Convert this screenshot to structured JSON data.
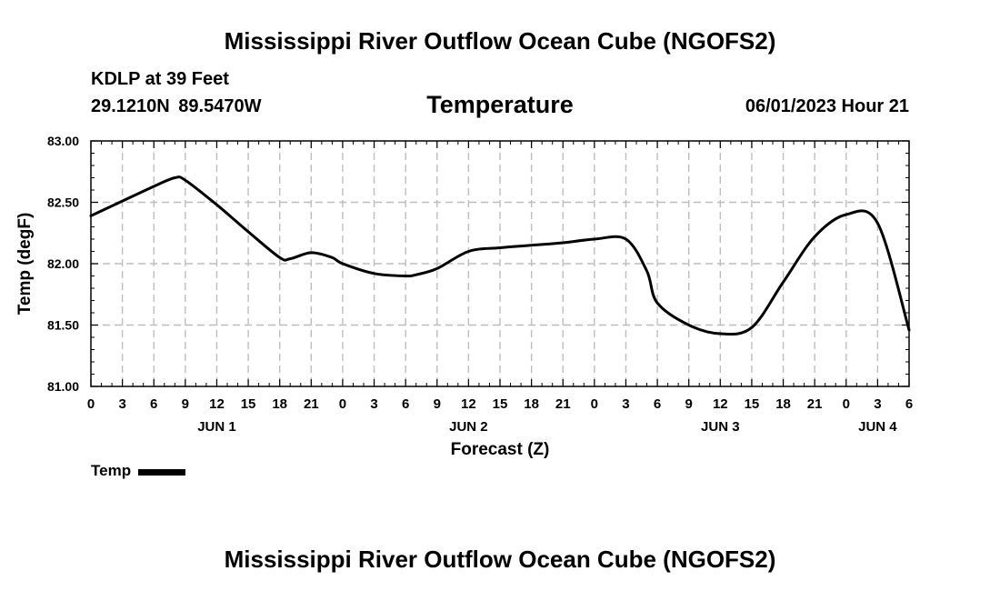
{
  "header": {
    "main_title": "Mississippi River Outflow Ocean Cube (NGOFS2)",
    "station": "KDLP at 39 Feet",
    "coords": "29.1210N  89.5470W",
    "variable": "Temperature",
    "datetime": "06/01/2023 Hour 21"
  },
  "footer": {
    "title": "Mississippi River Outflow Ocean Cube (NGOFS2)"
  },
  "legend": {
    "label": "Temp"
  },
  "chart_data": {
    "type": "line",
    "title": "Temperature",
    "xlabel": "Forecast (Z)",
    "ylabel": "Temp (degF)",
    "ylim": [
      81.0,
      83.0
    ],
    "xlim": [
      0,
      78
    ],
    "x_tick_labels": [
      "0",
      "3",
      "6",
      "9",
      "12",
      "15",
      "18",
      "21",
      "0",
      "3",
      "6",
      "9",
      "12",
      "15",
      "18",
      "21",
      "0",
      "3",
      "6",
      "9",
      "12",
      "15",
      "18",
      "21",
      "0",
      "3",
      "6"
    ],
    "y_ticks": [
      81.0,
      81.5,
      82.0,
      82.5,
      83.0
    ],
    "y_tick_labels": [
      "81.00",
      "81.50",
      "82.00",
      "82.50",
      "83.00"
    ],
    "day_labels": [
      {
        "label": "JUN 1",
        "hour": 12
      },
      {
        "label": "JUN 2",
        "hour": 36
      },
      {
        "label": "JUN 3",
        "hour": 60
      },
      {
        "label": "JUN 4",
        "hour": 75
      }
    ],
    "grid": true,
    "legend": "bottom-left",
    "series": [
      {
        "name": "Temp",
        "x": [
          0,
          3,
          6,
          8,
          9,
          12,
          15,
          18,
          19,
          21,
          23,
          24,
          27,
          30,
          31,
          33,
          36,
          39,
          42,
          45,
          48,
          51,
          53,
          54,
          57,
          60,
          63,
          66,
          69,
          72,
          75,
          78
        ],
        "values": [
          82.39,
          82.51,
          82.63,
          82.7,
          82.68,
          82.48,
          82.26,
          82.05,
          82.04,
          82.09,
          82.05,
          82.0,
          81.92,
          81.9,
          81.91,
          81.96,
          82.1,
          82.13,
          82.15,
          82.17,
          82.2,
          82.2,
          81.94,
          81.68,
          81.5,
          81.43,
          81.48,
          81.85,
          82.22,
          82.4,
          82.33,
          81.46
        ]
      }
    ]
  }
}
